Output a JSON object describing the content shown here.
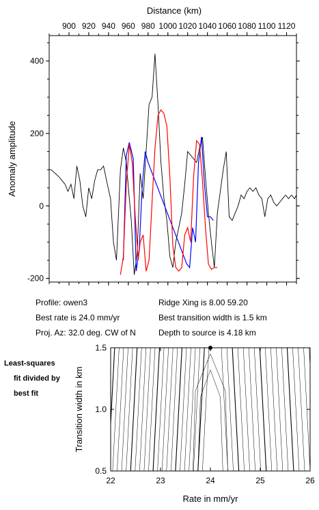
{
  "chart_data": [
    {
      "type": "line",
      "xlabel": "Distance (km)",
      "ylabel": "Anomaly amplitude",
      "xlim": [
        880,
        1130
      ],
      "ylim": [
        -210,
        470
      ],
      "x_ticks": [
        900,
        920,
        940,
        960,
        980,
        1000,
        1020,
        1040,
        1060,
        1080,
        1100,
        1120
      ],
      "x_tick_labels": [
        "900",
        "920",
        "940",
        "960",
        "980",
        "1000",
        "1020",
        "1040",
        "1060",
        "1080",
        "1100",
        "1120"
      ],
      "y_ticks": [
        -200,
        0,
        200,
        400
      ],
      "y_tick_labels": [
        "-200",
        "0",
        "200",
        "400"
      ],
      "series": [
        {
          "color": "#000000",
          "x": [
            880,
            882,
            886,
            890,
            893,
            896,
            899,
            902,
            905,
            908,
            911,
            914,
            917,
            920,
            923,
            926,
            929,
            932,
            935,
            938,
            942,
            945,
            948,
            952,
            955,
            958,
            961,
            963,
            966,
            969,
            972,
            975,
            978,
            981,
            984,
            987,
            990,
            993,
            996,
            999,
            1002,
            1005,
            1008,
            1011,
            1014,
            1017,
            1020,
            1023,
            1026,
            1029,
            1032,
            1035,
            1038,
            1041,
            1044,
            1047,
            1050,
            1053,
            1056,
            1059,
            1062,
            1065,
            1068,
            1071,
            1074,
            1077,
            1080,
            1083,
            1086,
            1089,
            1092,
            1095,
            1098,
            1101,
            1104,
            1107,
            1110,
            1113,
            1116,
            1119,
            1122,
            1125,
            1128,
            1130
          ],
          "y": [
            100,
            100,
            90,
            80,
            70,
            60,
            40,
            60,
            20,
            110,
            70,
            0,
            -30,
            50,
            20,
            70,
            100,
            100,
            110,
            70,
            20,
            -100,
            -150,
            100,
            160,
            120,
            20,
            -40,
            -190,
            -130,
            90,
            20,
            150,
            280,
            300,
            420,
            280,
            120,
            20,
            -40,
            -140,
            -170,
            -100,
            -60,
            -20,
            60,
            150,
            140,
            130,
            120,
            160,
            190,
            80,
            -20,
            -100,
            -170,
            -20,
            40,
            100,
            150,
            -30,
            -40,
            -20,
            0,
            30,
            20,
            40,
            50,
            40,
            50,
            30,
            20,
            -30,
            20,
            30,
            10,
            0,
            10,
            20,
            30,
            20,
            30,
            20,
            30
          ]
        },
        {
          "color": "#0000ff",
          "x": [
            955,
            958,
            961,
            965,
            968,
            971,
            974,
            977,
            980,
            1019,
            1022,
            1025,
            1028,
            1031,
            1034,
            1037,
            1040,
            1043,
            1046
          ],
          "y": [
            -150,
            140,
            175,
            130,
            -180,
            -120,
            50,
            150,
            120,
            -160,
            -170,
            -60,
            -100,
            120,
            190,
            60,
            -30,
            -30,
            -40
          ],
          "note": "Displayed as blue overlay segments"
        },
        {
          "color": "#ff0000",
          "x": [
            952,
            955,
            958,
            961,
            964,
            967,
            970,
            972,
            975,
            978,
            981,
            984,
            987,
            990,
            993,
            996,
            999,
            1002,
            1005,
            1008,
            1011,
            1014,
            1017,
            1020,
            1023,
            1026,
            1029,
            1032,
            1035,
            1038,
            1041,
            1044,
            1047,
            1050
          ],
          "y": [
            -190,
            -140,
            60,
            170,
            120,
            -30,
            -150,
            -100,
            -80,
            -180,
            -150,
            10,
            160,
            250,
            265,
            255,
            220,
            80,
            -110,
            -170,
            -180,
            -170,
            -80,
            -60,
            -100,
            80,
            180,
            170,
            70,
            -60,
            -160,
            -175,
            -170,
            -170
          ]
        }
      ]
    },
    {
      "type": "heatmap",
      "xlabel": "Rate in mm/yr",
      "ylabel": "Transition width in km",
      "xlim": [
        22,
        26
      ],
      "ylim": [
        0.5,
        1.5
      ],
      "x_ticks": [
        22,
        23,
        24,
        25,
        26
      ],
      "x_tick_labels": [
        "22",
        "23",
        "24",
        "25",
        "26"
      ],
      "y_ticks": [
        0.5,
        1.0,
        1.5
      ],
      "y_tick_labels": [
        "0.5",
        "1.0",
        "1.5"
      ],
      "best_fit_point": {
        "rate": 24.0,
        "width": 1.5
      }
    }
  ],
  "info": {
    "profile": "Profile: owen3",
    "best_rate": "Best rate is 24.0 mm/yr",
    "proj_az": "Proj. Az: 32.0 deg. CW of N",
    "ridge_xing": "Ridge Xing is 8.00 59.20",
    "best_transition": "Best transition width is 1.5 km",
    "depth_to_source": "Depth to source is   4.18 km"
  },
  "side_note": [
    "Least-squares",
    "fit divided by",
    "best fit"
  ]
}
